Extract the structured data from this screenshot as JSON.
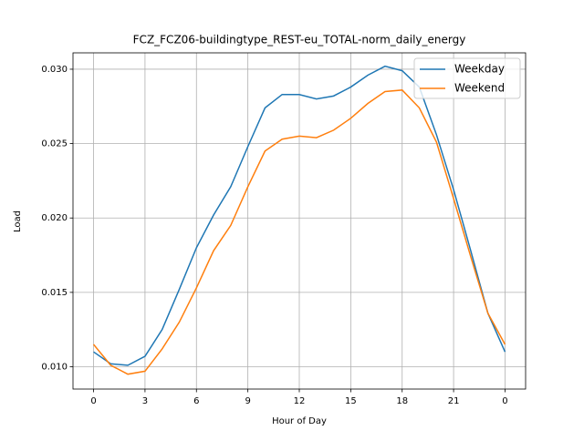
{
  "chart_data": {
    "type": "line",
    "title": "FCZ_FCZ06-buildingtype_REST-eu_TOTAL-norm_daily_energy",
    "x_label": "Hour of Day",
    "y_label": "Load",
    "x": [
      0,
      1,
      2,
      3,
      4,
      5,
      6,
      7,
      8,
      9,
      10,
      11,
      12,
      13,
      14,
      15,
      16,
      17,
      18,
      19,
      20,
      21,
      22,
      23,
      24
    ],
    "series": [
      {
        "name": "Weekday",
        "color": "#1f77b4",
        "values": [
          0.011,
          0.0102,
          0.0101,
          0.0107,
          0.0125,
          0.0152,
          0.018,
          0.0202,
          0.0221,
          0.0248,
          0.0274,
          0.0283,
          0.0283,
          0.028,
          0.0282,
          0.0288,
          0.0296,
          0.0302,
          0.0299,
          0.0288,
          0.0256,
          0.0219,
          0.0178,
          0.0136,
          0.011
        ]
      },
      {
        "name": "Weekend",
        "color": "#ff7f0e",
        "values": [
          0.0115,
          0.0101,
          0.0095,
          0.0097,
          0.0112,
          0.013,
          0.0153,
          0.0178,
          0.0195,
          0.0221,
          0.0245,
          0.0253,
          0.0255,
          0.0254,
          0.0259,
          0.0267,
          0.0277,
          0.0285,
          0.0286,
          0.0274,
          0.0251,
          0.0213,
          0.0174,
          0.0136,
          0.0115
        ]
      }
    ],
    "xlim": [
      -1.2,
      25.2
    ],
    "xticks": [
      0,
      3,
      6,
      9,
      12,
      15,
      18,
      21,
      {
        "value": 24,
        "label": "0"
      }
    ],
    "ylim": [
      0.0085,
      0.0311
    ],
    "yticks": [
      {
        "value": 0.01,
        "label": "0.010"
      },
      {
        "value": 0.015,
        "label": "0.015"
      },
      {
        "value": 0.02,
        "label": "0.020"
      },
      {
        "value": 0.025,
        "label": "0.025"
      },
      {
        "value": 0.03,
        "label": "0.030"
      }
    ],
    "grid": true,
    "legend": "upper right"
  }
}
